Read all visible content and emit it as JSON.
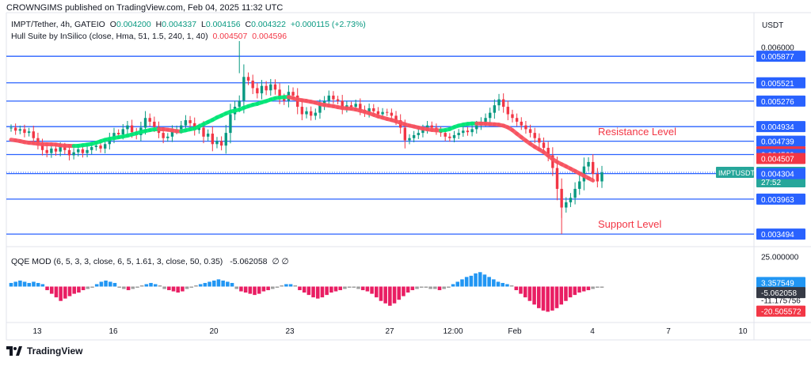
{
  "header": {
    "publisher": "CROWNGIMS published on TradingView.com, Feb 04, 2025 11:32 UTC",
    "symbol_line": "IMPT/Tether, 4h, GATEIO",
    "open_label": "O",
    "open": "0.004200",
    "high_label": "H",
    "high": "0.004337",
    "low_label": "L",
    "low": "0.004156",
    "close_label": "C",
    "close": "0.004322",
    "change": "+0.000115 (+2.73%)",
    "hull_label": "Hull Suite by InSilico (close, Hma, 51, 1.5, 240, 1, 40)",
    "hull_val1": "0.004507",
    "hull_val2": "0.004596",
    "currency": "USDT"
  },
  "qqe": {
    "label": "QQE MOD (6, 5, 3, 3, close, 6, 5, 1.61, 3, close, 50, 0.35)",
    "value": "-5.062058",
    "extra": "∅ ∅"
  },
  "annotations": {
    "resistance": "Resistance Level",
    "support": "Support Level"
  },
  "footer": {
    "brand": "TradingView"
  },
  "colors": {
    "up": "#089981",
    "down": "#f23645",
    "level": "#2962ff",
    "hull_up": "#00e676",
    "hull_down": "#f7525f",
    "hist_pos": "#2196f3",
    "hist_neg": "#e91e63",
    "hist_neutral": "#9e9e9e"
  },
  "chart_data": [
    {
      "type": "candlestick",
      "title": "IMPT/Tether, 4h, GATEIO",
      "ylim": [
        0.0034,
        0.00608
      ],
      "x_ticks": [
        "13",
        "16",
        "20",
        "23",
        "27",
        "12:00",
        "Feb",
        "4",
        "7",
        "10"
      ],
      "price_scale_ticks": [
        "0.006000"
      ],
      "horizontal_levels": [
        0.005877,
        0.005521,
        0.005276,
        0.004934,
        0.004739,
        0.00456,
        0.004304,
        0.003963,
        0.003494
      ],
      "right_axis_labels": [
        {
          "text": "0.006000",
          "value": 0.006,
          "style": "plain"
        },
        {
          "text": "0.005877",
          "value": 0.005877,
          "style": "level"
        },
        {
          "text": "0.005521",
          "value": 0.005521,
          "style": "level"
        },
        {
          "text": "0.005276",
          "value": 0.005276,
          "style": "level"
        },
        {
          "text": "0.004934",
          "value": 0.004934,
          "style": "level"
        },
        {
          "text": "0.004739",
          "value": 0.004739,
          "style": "level"
        },
        {
          "text": "0.004596",
          "value": 0.004596,
          "style": "red"
        },
        {
          "text": "0.004560",
          "value": 0.00456,
          "style": "level"
        },
        {
          "text": "0.004507",
          "value": 0.004507,
          "style": "red"
        },
        {
          "text": "0.004322",
          "value": 0.004322,
          "style": "price"
        },
        {
          "text": "27:52",
          "value": 0.004322,
          "style": "countdown"
        },
        {
          "text": "0.004304",
          "value": 0.004304,
          "style": "level"
        },
        {
          "text": "0.003963",
          "value": 0.003963,
          "style": "level"
        },
        {
          "text": "0.003494",
          "value": 0.003494,
          "style": "level"
        }
      ],
      "last_price": 0.004322,
      "symbol_tag": "IMPTUSDT",
      "countdown": "27:52",
      "closes": [
        0.00492,
        0.00488,
        0.0049,
        0.00485,
        0.00487,
        0.00478,
        0.0047,
        0.00462,
        0.00458,
        0.00464,
        0.0046,
        0.00466,
        0.00462,
        0.00455,
        0.00459,
        0.00463,
        0.00458,
        0.00462,
        0.00466,
        0.00468,
        0.00464,
        0.0047,
        0.00478,
        0.00485,
        0.00483,
        0.0049,
        0.00495,
        0.00486,
        0.00482,
        0.00492,
        0.00505,
        0.005,
        0.00493,
        0.00485,
        0.00478,
        0.0048,
        0.00488,
        0.0049,
        0.00495,
        0.00502,
        0.00498,
        0.00489,
        0.00492,
        0.0048,
        0.00484,
        0.0047,
        0.00474,
        0.00468,
        0.00485,
        0.0051,
        0.0052,
        0.00528,
        0.0056,
        0.00555,
        0.00545,
        0.00538,
        0.00548,
        0.00542,
        0.0055,
        0.00543,
        0.00532,
        0.00528,
        0.0054,
        0.00535,
        0.0052,
        0.0051,
        0.00514,
        0.00508,
        0.00512,
        0.00522,
        0.00528,
        0.00535,
        0.0053,
        0.00528,
        0.00518,
        0.00522,
        0.0052,
        0.00524,
        0.00516,
        0.00512,
        0.00518,
        0.00514,
        0.0051,
        0.00513,
        0.00512,
        0.00508,
        0.00502,
        0.00492,
        0.00475,
        0.00478,
        0.00482,
        0.00485,
        0.0049,
        0.00495,
        0.00492,
        0.00488,
        0.00485,
        0.0048,
        0.00478,
        0.00482,
        0.00485,
        0.00488,
        0.00486,
        0.0049,
        0.00495,
        0.005,
        0.00505,
        0.00512,
        0.00522,
        0.0053,
        0.0052,
        0.0051,
        0.00505,
        0.005,
        0.00495,
        0.0049,
        0.00485,
        0.00478,
        0.00472,
        0.00465,
        0.00455,
        0.00438,
        0.0041,
        0.00385,
        0.00392,
        0.00398,
        0.0041,
        0.0042,
        0.0044,
        0.00446,
        0.0043,
        0.0042,
        0.00432
      ]
    },
    {
      "type": "bar",
      "title": "QQE MOD (6, 5, 3, 3, close, 6, 5, 1.61, 3, close, 50, 0.35)",
      "ylim": [
        -28,
        28
      ],
      "right_axis_labels": [
        {
          "text": "25.000000",
          "value": 25.0,
          "style": "plain"
        },
        {
          "text": "3.357549",
          "value": 3.357549,
          "style": "blue"
        },
        {
          "text": "-5.062058",
          "value": -5.062058,
          "style": "dark"
        },
        {
          "text": "-11.175756",
          "value": -11.175756,
          "style": "plain"
        },
        {
          "text": "-20.505572",
          "value": -20.505572,
          "style": "red"
        }
      ],
      "values": [
        3,
        4,
        5,
        4,
        3,
        4,
        3,
        2,
        -3,
        -6,
        -9,
        -12,
        -10,
        -8,
        -6,
        -5,
        -3,
        -2,
        -1,
        2,
        4,
        5,
        4,
        3,
        -1,
        -2,
        -3,
        -2,
        -1,
        1,
        2,
        3,
        2,
        1,
        -2,
        -3,
        -4,
        -5,
        -4,
        -2,
        -1,
        1,
        2,
        3,
        4,
        5,
        6,
        5,
        4,
        3,
        -2,
        -4,
        -5,
        -6,
        -7,
        -6,
        -4,
        -3,
        -2,
        -1,
        1,
        2,
        2,
        1,
        -3,
        -5,
        -7,
        -9,
        -10,
        -9,
        -7,
        -5,
        -4,
        -3,
        -2,
        -1,
        -1,
        -2,
        -3,
        -4,
        -6,
        -9,
        -12,
        -14,
        -16,
        -14,
        -11,
        -8,
        -5,
        -3,
        -2,
        -1,
        -1,
        -2,
        -2,
        -3,
        -2,
        -1,
        2,
        4,
        6,
        8,
        9,
        11,
        12,
        10,
        8,
        6,
        4,
        3,
        2,
        1,
        -3,
        -6,
        -9,
        -12,
        -15,
        -18,
        -20,
        -21,
        -20,
        -18,
        -15,
        -12,
        -9,
        -7,
        -5,
        -4,
        -3,
        -2,
        -1,
        -1
      ],
      "bar_kinds": "blue if value>0 and strong, gray if weak, magenta if strongly negative"
    }
  ]
}
